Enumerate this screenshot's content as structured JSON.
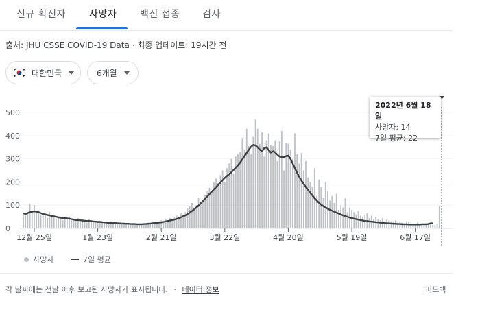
{
  "tabs": [
    {
      "label": "신규 확진자",
      "active": false
    },
    {
      "label": "사망자",
      "active": true
    },
    {
      "label": "백신 접종",
      "active": false
    },
    {
      "label": "검사",
      "active": false
    }
  ],
  "source": {
    "prefix": "출처:",
    "link": "JHU CSSE COVID-19 Data",
    "separator": "·",
    "updated": "최종 업데이트: 19시간 전"
  },
  "filters": {
    "region": "대한민국",
    "period": "6개월"
  },
  "tooltip": {
    "date": "2022년 6월 18일",
    "deaths_label": "사망자: 14",
    "avg_label": "7일 평균: 22"
  },
  "legend": {
    "bars": "사망자",
    "line": "7일 평균"
  },
  "footer": {
    "text": "각 날짜에는 전날 이후 보고된 사망자가 표시됩니다.",
    "separator": "·",
    "link": "데이터 정보",
    "feedback": "피드백"
  },
  "colors": {
    "bar": "#bdc1c6",
    "line": "#3c4043",
    "tab_active": "#1a73e8"
  },
  "chart_data": {
    "type": "bar",
    "x_axis_type": "date",
    "x_ticks": [
      "12월 25일",
      "1월 23일",
      "2월 21일",
      "3월 22일",
      "4월 20일",
      "5월 19일",
      "6월 17일"
    ],
    "y_ticks": [
      0,
      100,
      200,
      300,
      400,
      500
    ],
    "ylim": [
      0,
      520
    ],
    "grid": true,
    "legend_position": "bottom-left",
    "series": [
      {
        "name": "사망자",
        "type": "bar",
        "start_date": "2021-12-20",
        "values": [
          60,
          55,
          70,
          105,
          75,
          100,
          65,
          70,
          60,
          55,
          65,
          45,
          70,
          50,
          55,
          40,
          50,
          45,
          35,
          40,
          45,
          50,
          35,
          35,
          40,
          45,
          30,
          35,
          30,
          25,
          40,
          35,
          30,
          25,
          30,
          25,
          30,
          25,
          20,
          25,
          30,
          20,
          25,
          25,
          20,
          20,
          25,
          20,
          20,
          15,
          20,
          20,
          15,
          15,
          20,
          20,
          15,
          25,
          20,
          30,
          25,
          25,
          30,
          35,
          30,
          40,
          35,
          45,
          40,
          50,
          55,
          45,
          65,
          60,
          70,
          85,
          95,
          110,
          90,
          100,
          130,
          110,
          120,
          145,
          160,
          175,
          155,
          200,
          215,
          195,
          230,
          250,
          200,
          260,
          280,
          300,
          235,
          310,
          320,
          330,
          390,
          340,
          430,
          355,
          320,
          395,
          470,
          430,
          365,
          415,
          310,
          380,
          410,
          360,
          355,
          380,
          290,
          375,
          420,
          250,
          370,
          365,
          340,
          300,
          410,
          320,
          280,
          325,
          250,
          290,
          220,
          200,
          180,
          260,
          140,
          210,
          180,
          130,
          200,
          160,
          120,
          140,
          110,
          150,
          80,
          100,
          90,
          130,
          70,
          90,
          80,
          70,
          60,
          75,
          55,
          50,
          60,
          65,
          45,
          55,
          40,
          50,
          40,
          35,
          45,
          30,
          40,
          35,
          30,
          30,
          35,
          25,
          30,
          25,
          20,
          25,
          30,
          20,
          20,
          15,
          25,
          20,
          15,
          20,
          15,
          20,
          25,
          15,
          15,
          20,
          95,
          14
        ],
        "x_ticks_dates": [
          "2021-12-25",
          "2022-01-23",
          "2022-02-21",
          "2022-03-22",
          "2022-04-20",
          "2022-05-19",
          "2022-06-17"
        ],
        "final_date": "2022-06-18"
      },
      {
        "name": "7일 평균",
        "type": "line",
        "values": [
          65,
          62,
          66,
          70,
          72,
          74,
          72,
          70,
          66,
          62,
          60,
          58,
          56,
          54,
          52,
          50,
          48,
          46,
          44,
          44,
          43,
          42,
          40,
          38,
          36,
          36,
          35,
          34,
          33,
          32,
          32,
          31,
          30,
          29,
          28,
          28,
          27,
          26,
          25,
          24,
          24,
          23,
          23,
          22,
          22,
          21,
          21,
          20,
          20,
          19,
          19,
          19,
          18,
          18,
          18,
          19,
          19,
          20,
          21,
          22,
          23,
          24,
          25,
          26,
          28,
          30,
          32,
          34,
          36,
          38,
          41,
          44,
          48,
          52,
          56,
          62,
          68,
          75,
          82,
          90,
          98,
          108,
          118,
          128,
          138,
          148,
          158,
          168,
          178,
          188,
          198,
          208,
          218,
          226,
          234,
          242,
          252,
          262,
          272,
          284,
          298,
          312,
          326,
          340,
          352,
          360,
          358,
          350,
          340,
          333,
          346,
          350,
          338,
          327,
          333,
          328,
          318,
          310,
          308,
          308,
          312,
          314,
          300,
          280,
          260,
          240,
          222,
          206,
          192,
          178,
          166,
          154,
          142,
          130,
          120,
          110,
          102,
          96,
          90,
          85,
          80,
          76,
          72,
          68,
          64,
          60,
          56,
          53,
          50,
          47,
          44,
          42,
          40,
          38,
          36,
          34,
          32,
          31,
          30,
          29,
          28,
          27,
          26,
          25,
          24,
          23,
          22,
          22,
          21,
          20,
          20,
          19,
          19,
          18,
          18,
          18,
          17,
          17,
          17,
          17,
          17,
          17,
          18,
          18,
          18,
          19,
          22,
          22
        ],
        "final_value": 22
      }
    ]
  }
}
